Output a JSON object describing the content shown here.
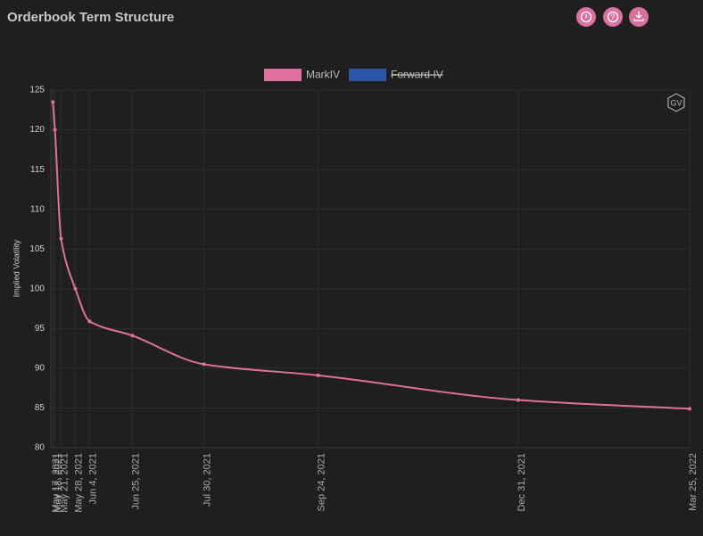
{
  "header": {
    "title": "Orderbook Term Structure"
  },
  "chart_data": {
    "type": "line",
    "logo": "GV",
    "y_label": "Implied Volatility",
    "x": [
      "May 17, 2021",
      "May 18, 2021",
      "May 21, 2021",
      "May 28, 2021",
      "Jun 4, 2021",
      "Jun 25, 2021",
      "Jul 30, 2021",
      "Sep 24, 2021",
      "Dec 31, 2021",
      "Mar 25, 2022"
    ],
    "xlim": [
      "May 16, 2021",
      "Mar 25, 2022"
    ],
    "series": [
      {
        "name": "MarkIV",
        "color": "#e0719f",
        "values": [
          123.5,
          120,
          106.3,
          100,
          95.9,
          94.1,
          90.5,
          89.1,
          86,
          84.9
        ]
      },
      {
        "name": "Forward IV",
        "color": "#2b55a8",
        "hidden": true
      }
    ],
    "ylim": [
      80,
      125
    ],
    "yticks": [
      80,
      85,
      90,
      95,
      100,
      105,
      110,
      115,
      120,
      125
    ],
    "grid": true,
    "legend": "top"
  }
}
